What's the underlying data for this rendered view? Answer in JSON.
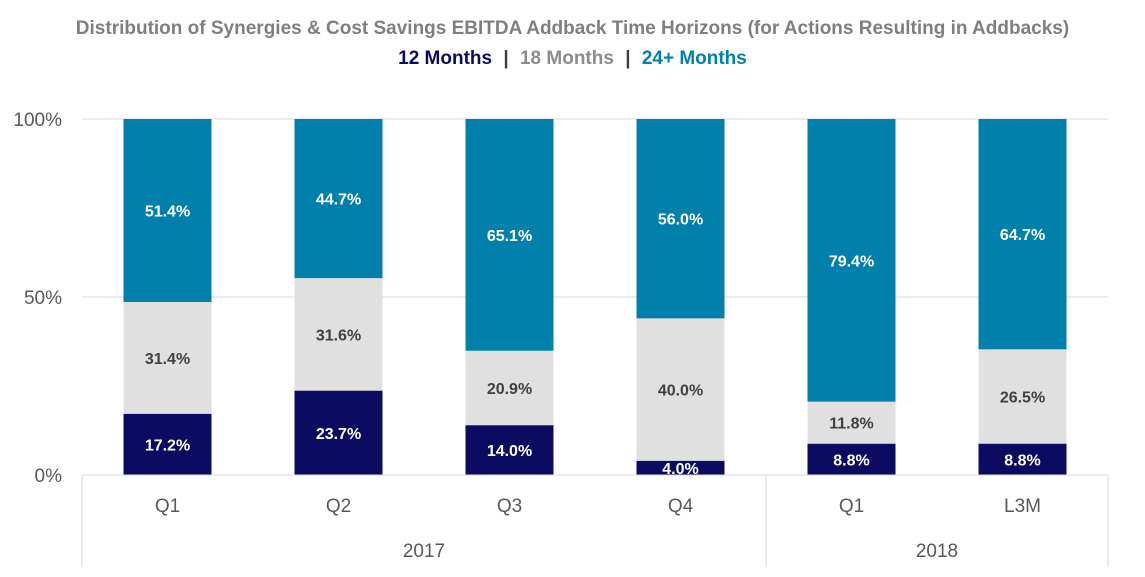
{
  "chart_data": {
    "type": "bar",
    "stacked": true,
    "title": "Distribution of Synergies & Cost Savings EBITDA Addback Time Horizons (for Actions Resulting in Addbacks)",
    "categories": [
      "Q1",
      "Q2",
      "Q3",
      "Q4",
      "Q1",
      "L3M"
    ],
    "category_groups": [
      {
        "label": "2017",
        "count": 4
      },
      {
        "label": "2018",
        "count": 2
      }
    ],
    "series": [
      {
        "name": "12 Months",
        "color": "#0b0b61",
        "label_color": "#ffffff",
        "values": [
          17.2,
          23.7,
          14.0,
          4.0,
          8.8,
          8.8
        ],
        "labels": [
          "17.2%",
          "23.7%",
          "14.0%",
          "4.0%",
          "8.8%",
          "8.8%"
        ]
      },
      {
        "name": "18 Months",
        "color": "#e0e0e0",
        "label_color": "#404040",
        "values": [
          31.4,
          31.6,
          20.9,
          40.0,
          11.8,
          26.5
        ],
        "labels": [
          "31.4%",
          "31.6%",
          "20.9%",
          "40.0%",
          "11.8%",
          "26.5%"
        ]
      },
      {
        "name": "24+ Months",
        "color": "#0180ac",
        "label_color": "#ffffff",
        "values": [
          51.4,
          44.7,
          65.1,
          56.0,
          79.4,
          64.7
        ],
        "labels": [
          "51.4%",
          "44.7%",
          "65.1%",
          "56.0%",
          "79.4%",
          "64.7%"
        ]
      }
    ],
    "legend": {
      "placement": "top",
      "separator": "|",
      "separator_color": "#404040",
      "items": [
        {
          "name": "12 Months",
          "color": "#0b0b61"
        },
        {
          "name": "18 Months",
          "color": "#8c8c8c"
        },
        {
          "name": "24+ Months",
          "color": "#0180ac"
        }
      ]
    },
    "yticks": [
      "0%",
      "50%",
      "100%"
    ],
    "ytick_values": [
      0,
      50,
      100
    ],
    "ylim": [
      0,
      100
    ],
    "grid": true,
    "title_color": "#7f7f7f",
    "axis_text_color": "#595959",
    "grid_color": "#d9d9d9"
  }
}
